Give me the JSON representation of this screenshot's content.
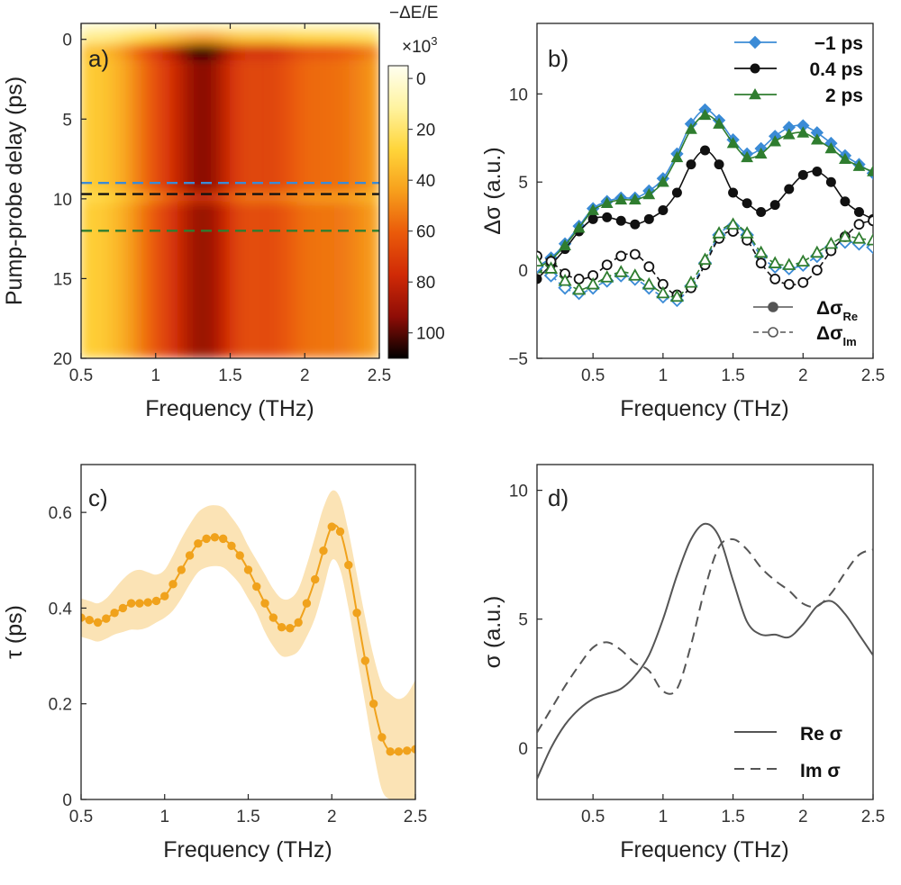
{
  "chart_data": [
    {
      "panel": "a)",
      "type": "heatmap",
      "xlabel": "Frequency (THz)",
      "ylabel": "Pump-probe delay (ps)",
      "xlim": [
        0.5,
        2.5
      ],
      "ylim": [
        20,
        -1
      ],
      "x_ticks": [
        "0.5",
        "1",
        "1.5",
        "2",
        "2.5"
      ],
      "y_ticks": [
        "0",
        "5",
        "10",
        "15",
        "20"
      ],
      "colorbar": {
        "title": "−ΔE/E",
        "scale_label": "×10",
        "scale_exp": "3",
        "range": [
          -5,
          110
        ],
        "ticks": [
          "0",
          "20",
          "40",
          "60",
          "80",
          "100"
        ],
        "colors": [
          "#fffff0",
          "#fff3a0",
          "#ffd53a",
          "#f79f1c",
          "#ea5a0a",
          "#d02a06",
          "#8f0d06",
          "#000000"
        ]
      },
      "lines": [
        {
          "delay": 9.0,
          "color": "#3b8bd6"
        },
        {
          "delay": 9.7,
          "color": "#111111"
        },
        {
          "delay": 12.0,
          "color": "#2f7d2f"
        }
      ]
    },
    {
      "panel": "b)",
      "type": "line",
      "xlabel": "Frequency (THz)",
      "ylabel": "Δσ (a.u.)",
      "xlim": [
        0.1,
        2.5
      ],
      "ylim": [
        -5,
        14
      ],
      "x_ticks": [
        "0.5",
        "1",
        "1.5",
        "2",
        "2.5"
      ],
      "y_ticks": [
        "−5",
        "0",
        "5",
        "10"
      ],
      "x": [
        0.1,
        0.2,
        0.3,
        0.4,
        0.5,
        0.6,
        0.7,
        0.8,
        0.9,
        1.0,
        1.1,
        1.2,
        1.3,
        1.4,
        1.5,
        1.6,
        1.7,
        1.8,
        1.9,
        2.0,
        2.1,
        2.2,
        2.3,
        2.4,
        2.5
      ],
      "series": [
        {
          "name": "−1 ps",
          "part": "Re",
          "color": "#3b8bd6",
          "marker": "diamond",
          "values": [
            0.2,
            0.7,
            1.5,
            2.5,
            3.5,
            3.9,
            4.1,
            4.1,
            4.5,
            5.2,
            6.6,
            8.3,
            9.1,
            8.5,
            7.4,
            6.6,
            6.9,
            7.6,
            8.1,
            8.2,
            7.8,
            7.2,
            6.5,
            6.0,
            5.5
          ]
        },
        {
          "name": "0.4 ps",
          "part": "Re",
          "color": "#111111",
          "marker": "circle",
          "values": [
            -0.5,
            0.3,
            1.2,
            2.2,
            2.9,
            3.0,
            2.8,
            2.6,
            2.9,
            3.4,
            4.4,
            6.0,
            6.8,
            6.0,
            4.4,
            3.8,
            3.3,
            3.7,
            4.6,
            5.4,
            5.6,
            5.0,
            3.9,
            3.3,
            2.9
          ]
        },
        {
          "name": "2 ps",
          "part": "Re",
          "color": "#2f7d2f",
          "marker": "triangle",
          "values": [
            0.1,
            0.6,
            1.4,
            2.4,
            3.4,
            3.8,
            4.0,
            4.0,
            4.3,
            5.0,
            6.4,
            8.0,
            8.8,
            8.3,
            7.2,
            6.4,
            6.6,
            7.3,
            7.7,
            7.8,
            7.4,
            6.9,
            6.3,
            5.9,
            5.6
          ]
        },
        {
          "name": "−1 ps",
          "part": "Im",
          "color": "#3b8bd6",
          "marker": "diamond-open",
          "values": [
            0.2,
            -0.3,
            -1.0,
            -1.3,
            -1.0,
            -0.6,
            -0.3,
            -0.5,
            -1.0,
            -1.5,
            -1.7,
            -0.9,
            0.4,
            2.0,
            2.5,
            2.0,
            0.8,
            0.2,
            0.1,
            0.3,
            0.8,
            1.3,
            1.6,
            1.5,
            1.3
          ]
        },
        {
          "name": "0.4 ps",
          "part": "Im",
          "color": "#111111",
          "marker": "circle-open",
          "values": [
            0.8,
            0.5,
            -0.2,
            -0.5,
            -0.3,
            0.3,
            0.8,
            0.9,
            0.2,
            -0.8,
            -1.4,
            -1.0,
            0.3,
            1.8,
            2.2,
            1.7,
            0.4,
            -0.5,
            -0.8,
            -0.7,
            0.0,
            1.1,
            1.9,
            2.6,
            2.8
          ]
        },
        {
          "name": "2 ps",
          "part": "Im",
          "color": "#2f7d2f",
          "marker": "triangle-open",
          "values": [
            0.5,
            0.1,
            -0.6,
            -1.1,
            -0.8,
            -0.4,
            -0.1,
            -0.3,
            -0.8,
            -1.3,
            -1.5,
            -0.7,
            0.6,
            2.1,
            2.6,
            2.1,
            1.0,
            0.4,
            0.3,
            0.5,
            1.0,
            1.5,
            1.9,
            1.8,
            1.7
          ]
        }
      ],
      "legend_top": [
        "−1 ps",
        "0.4 ps",
        "2 ps"
      ],
      "legend_bottom": [
        {
          "base": "Δσ",
          "sub": "Re"
        },
        {
          "base": "Δσ",
          "sub": "Im"
        }
      ]
    },
    {
      "panel": "c)",
      "type": "line",
      "xlabel": "Frequency (THz)",
      "ylabel": "τ (ps)",
      "xlim": [
        0.5,
        2.5
      ],
      "ylim": [
        0,
        0.7
      ],
      "x_ticks": [
        "0.5",
        "1",
        "1.5",
        "2",
        "2.5"
      ],
      "y_ticks": [
        "0",
        "0.2",
        "0.4",
        "0.6"
      ],
      "color": "#f0a21c",
      "band_color": "#fbe3b5",
      "x": [
        0.5,
        0.55,
        0.6,
        0.65,
        0.7,
        0.75,
        0.8,
        0.85,
        0.9,
        0.95,
        1.0,
        1.05,
        1.1,
        1.15,
        1.2,
        1.25,
        1.3,
        1.35,
        1.4,
        1.45,
        1.5,
        1.55,
        1.6,
        1.65,
        1.7,
        1.75,
        1.8,
        1.85,
        1.9,
        1.95,
        2.0,
        2.05,
        2.1,
        2.15,
        2.2,
        2.25,
        2.3,
        2.35,
        2.4,
        2.45,
        2.5
      ],
      "values": [
        0.38,
        0.375,
        0.37,
        0.378,
        0.39,
        0.4,
        0.41,
        0.41,
        0.412,
        0.415,
        0.425,
        0.45,
        0.48,
        0.51,
        0.535,
        0.545,
        0.548,
        0.545,
        0.53,
        0.51,
        0.48,
        0.445,
        0.41,
        0.38,
        0.36,
        0.358,
        0.37,
        0.41,
        0.46,
        0.52,
        0.57,
        0.56,
        0.49,
        0.39,
        0.29,
        0.2,
        0.13,
        0.1,
        0.1,
        0.102,
        0.105
      ],
      "upper": [
        0.42,
        0.415,
        0.41,
        0.42,
        0.44,
        0.46,
        0.475,
        0.48,
        0.475,
        0.47,
        0.48,
        0.51,
        0.545,
        0.575,
        0.6,
        0.612,
        0.615,
        0.61,
        0.59,
        0.565,
        0.53,
        0.5,
        0.47,
        0.44,
        0.42,
        0.42,
        0.44,
        0.49,
        0.55,
        0.61,
        0.645,
        0.63,
        0.56,
        0.47,
        0.38,
        0.3,
        0.24,
        0.22,
        0.21,
        0.22,
        0.25
      ],
      "lower": [
        0.34,
        0.335,
        0.33,
        0.336,
        0.345,
        0.35,
        0.355,
        0.355,
        0.36,
        0.37,
        0.38,
        0.395,
        0.42,
        0.45,
        0.475,
        0.485,
        0.488,
        0.485,
        0.47,
        0.45,
        0.42,
        0.39,
        0.35,
        0.32,
        0.3,
        0.3,
        0.31,
        0.34,
        0.38,
        0.44,
        0.5,
        0.48,
        0.4,
        0.3,
        0.2,
        0.1,
        0.02,
        0.0,
        0.0,
        0.0,
        0.0
      ]
    },
    {
      "panel": "d)",
      "type": "line",
      "xlabel": "Frequency (THz)",
      "ylabel": "σ (a.u.)",
      "xlim": [
        0.1,
        2.5
      ],
      "ylim": [
        -2,
        11
      ],
      "x_ticks": [
        "0.5",
        "1",
        "1.5",
        "2",
        "2.5"
      ],
      "y_ticks": [
        "0",
        "5",
        "10"
      ],
      "x": [
        0.1,
        0.2,
        0.3,
        0.4,
        0.5,
        0.6,
        0.7,
        0.8,
        0.9,
        1.0,
        1.1,
        1.2,
        1.3,
        1.4,
        1.5,
        1.6,
        1.7,
        1.8,
        1.9,
        2.0,
        2.1,
        2.2,
        2.3,
        2.4,
        2.5
      ],
      "series": [
        {
          "name": "Re σ",
          "dash": false,
          "color": "#555555",
          "values": [
            -1.2,
            0.0,
            0.9,
            1.5,
            1.9,
            2.1,
            2.3,
            2.8,
            3.6,
            5.0,
            6.7,
            8.1,
            8.7,
            8.2,
            6.5,
            4.9,
            4.4,
            4.4,
            4.3,
            4.8,
            5.5,
            5.7,
            5.2,
            4.4,
            3.6
          ]
        },
        {
          "name": "Im σ",
          "dash": true,
          "color": "#555555",
          "values": [
            0.6,
            1.5,
            2.4,
            3.2,
            3.9,
            4.1,
            3.8,
            3.3,
            3.0,
            2.2,
            2.3,
            4.0,
            6.2,
            7.8,
            8.1,
            7.7,
            7.0,
            6.5,
            6.1,
            5.6,
            5.5,
            6.0,
            6.8,
            7.5,
            7.7
          ]
        }
      ]
    }
  ]
}
